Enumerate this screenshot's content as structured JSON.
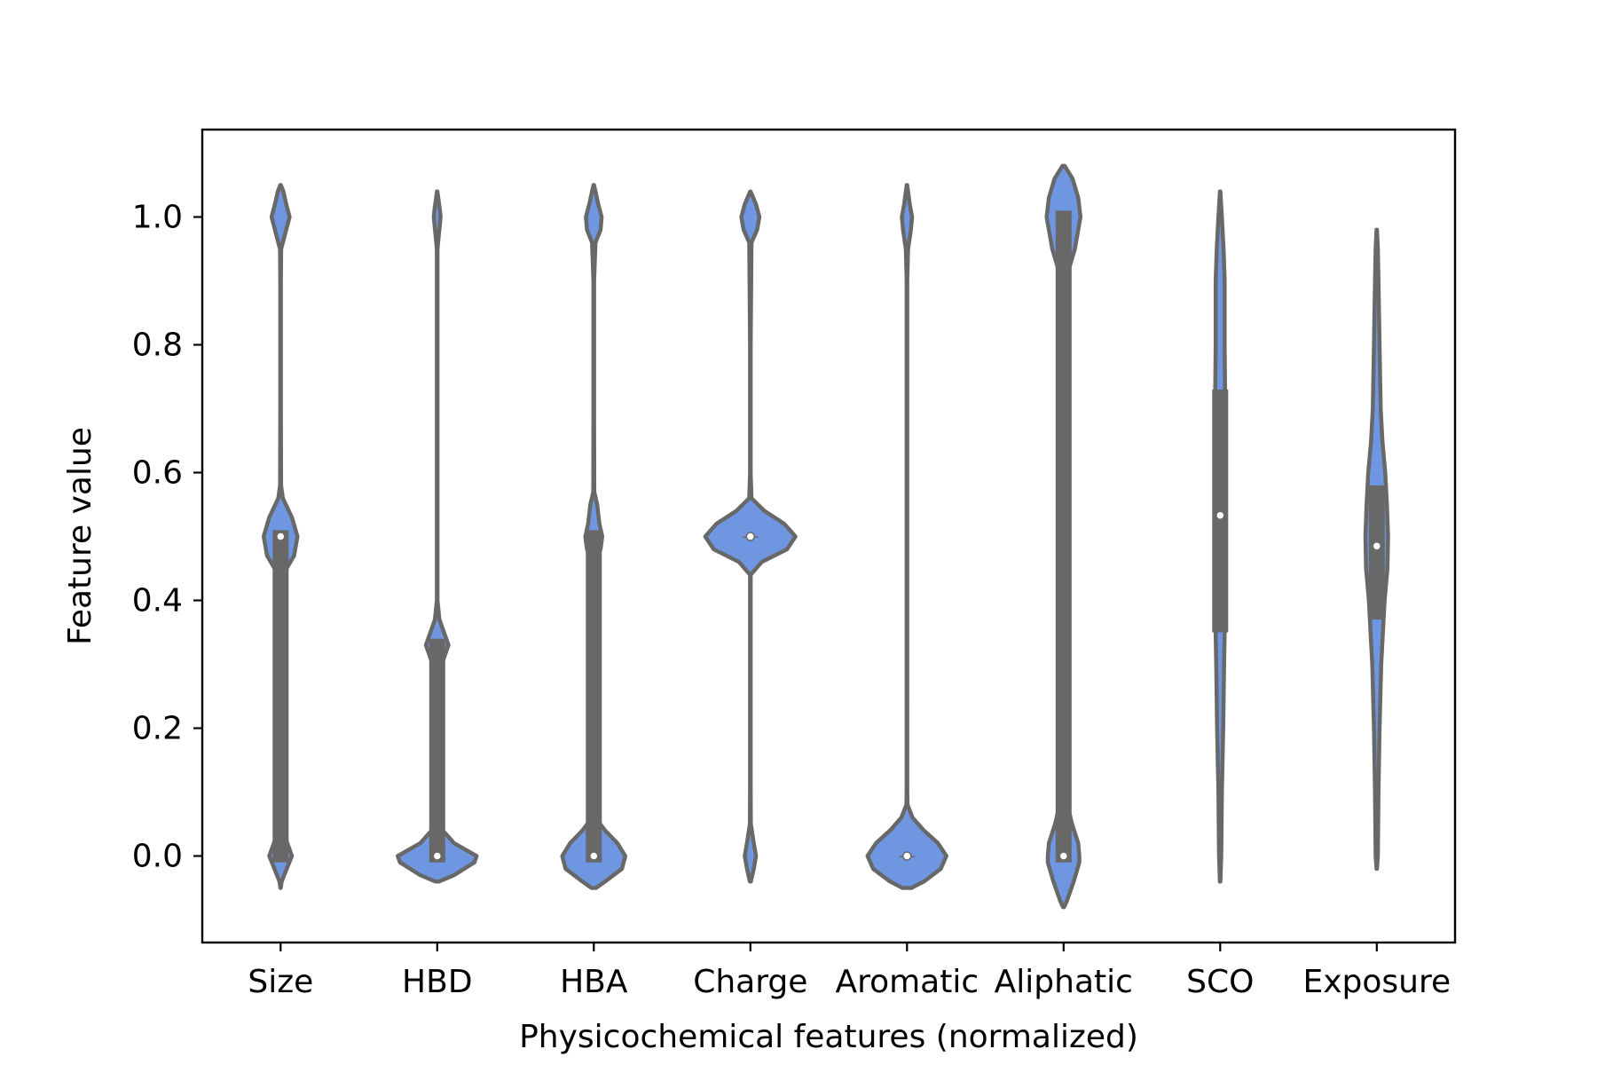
{
  "chart_data": {
    "type": "violin",
    "xlabel": "Physicochemical features (normalized)",
    "ylabel": "Feature value",
    "ylim": [
      -0.135,
      1.135
    ],
    "yticks": [
      0.0,
      0.2,
      0.4,
      0.6,
      0.8,
      1.0
    ],
    "ytick_labels": [
      "0.0",
      "0.2",
      "0.4",
      "0.6",
      "0.8",
      "1.0"
    ],
    "categories": [
      "Size",
      "HBD",
      "HBA",
      "Charge",
      "Aromatic",
      "Aliphatic",
      "SCO",
      "Exposure"
    ],
    "grid": false,
    "colors": {
      "violin_fill": "#6f97e1",
      "violin_edge": "#686868",
      "box": "#686868",
      "median_dot": "#ffffff",
      "axes": "#000000"
    },
    "violins": [
      {
        "name": "Size",
        "median": 0.5,
        "q1": -0.01,
        "q3": 0.51,
        "profile": [
          [
            -0.05,
            0.002
          ],
          [
            -0.04,
            0.02
          ],
          [
            -0.02,
            0.11
          ],
          [
            0.0,
            0.2
          ],
          [
            0.02,
            0.12
          ],
          [
            0.04,
            0.03
          ],
          [
            0.06,
            0.01
          ],
          [
            0.1,
            0.006
          ],
          [
            0.2,
            0.006
          ],
          [
            0.3,
            0.006
          ],
          [
            0.4,
            0.008
          ],
          [
            0.44,
            0.04
          ],
          [
            0.47,
            0.24
          ],
          [
            0.5,
            0.3
          ],
          [
            0.53,
            0.2
          ],
          [
            0.56,
            0.04
          ],
          [
            0.58,
            0.008
          ],
          [
            0.7,
            0.006
          ],
          [
            0.8,
            0.006
          ],
          [
            0.9,
            0.006
          ],
          [
            0.95,
            0.01
          ],
          [
            0.98,
            0.1
          ],
          [
            1.0,
            0.16
          ],
          [
            1.02,
            0.1
          ],
          [
            1.04,
            0.05
          ],
          [
            1.05,
            0.004
          ]
        ]
      },
      {
        "name": "HBD",
        "median": 0.0,
        "q1": -0.01,
        "q3": 0.34,
        "profile": [
          [
            -0.04,
            0.03
          ],
          [
            -0.03,
            0.3
          ],
          [
            -0.01,
            0.66
          ],
          [
            0.0,
            0.7
          ],
          [
            0.02,
            0.3
          ],
          [
            0.04,
            0.1
          ],
          [
            0.06,
            0.02
          ],
          [
            0.1,
            0.006
          ],
          [
            0.2,
            0.006
          ],
          [
            0.28,
            0.008
          ],
          [
            0.31,
            0.12
          ],
          [
            0.33,
            0.2
          ],
          [
            0.35,
            0.12
          ],
          [
            0.37,
            0.04
          ],
          [
            0.4,
            0.006
          ],
          [
            0.6,
            0.006
          ],
          [
            0.8,
            0.006
          ],
          [
            0.95,
            0.006
          ],
          [
            0.99,
            0.05
          ],
          [
            1.0,
            0.06
          ],
          [
            1.01,
            0.05
          ],
          [
            1.04,
            0.004
          ]
        ]
      },
      {
        "name": "HBA",
        "median": 0.0,
        "q1": -0.01,
        "q3": 0.51,
        "profile": [
          [
            -0.05,
            0.04
          ],
          [
            -0.04,
            0.2
          ],
          [
            -0.02,
            0.5
          ],
          [
            0.0,
            0.56
          ],
          [
            0.02,
            0.42
          ],
          [
            0.04,
            0.2
          ],
          [
            0.06,
            0.03
          ],
          [
            0.1,
            0.006
          ],
          [
            0.2,
            0.006
          ],
          [
            0.4,
            0.006
          ],
          [
            0.46,
            0.03
          ],
          [
            0.48,
            0.12
          ],
          [
            0.5,
            0.15
          ],
          [
            0.52,
            0.1
          ],
          [
            0.55,
            0.06
          ],
          [
            0.57,
            0.008
          ],
          [
            0.7,
            0.006
          ],
          [
            0.9,
            0.006
          ],
          [
            0.96,
            0.03
          ],
          [
            0.98,
            0.12
          ],
          [
            1.0,
            0.14
          ],
          [
            1.02,
            0.08
          ],
          [
            1.04,
            0.03
          ],
          [
            1.05,
            0.004
          ]
        ]
      },
      {
        "name": "Charge",
        "median": 0.5,
        "q1": 0.5,
        "q3": 0.5,
        "profile": [
          [
            -0.04,
            0.008
          ],
          [
            -0.02,
            0.06
          ],
          [
            0.0,
            0.1
          ],
          [
            0.02,
            0.06
          ],
          [
            0.05,
            0.008
          ],
          [
            0.1,
            0.006
          ],
          [
            0.3,
            0.006
          ],
          [
            0.44,
            0.006
          ],
          [
            0.46,
            0.2
          ],
          [
            0.48,
            0.65
          ],
          [
            0.5,
            0.8
          ],
          [
            0.52,
            0.6
          ],
          [
            0.54,
            0.25
          ],
          [
            0.56,
            0.02
          ],
          [
            0.6,
            0.006
          ],
          [
            0.8,
            0.006
          ],
          [
            0.96,
            0.02
          ],
          [
            0.98,
            0.12
          ],
          [
            1.0,
            0.16
          ],
          [
            1.02,
            0.1
          ],
          [
            1.04,
            0.004
          ]
        ]
      },
      {
        "name": "Aromatic",
        "median": 0.0,
        "q1": 0.0,
        "q3": 0.0,
        "profile": [
          [
            -0.05,
            0.08
          ],
          [
            -0.04,
            0.3
          ],
          [
            -0.02,
            0.6
          ],
          [
            0.0,
            0.7
          ],
          [
            0.02,
            0.55
          ],
          [
            0.04,
            0.3
          ],
          [
            0.06,
            0.1
          ],
          [
            0.08,
            0.01
          ],
          [
            0.1,
            0.006
          ],
          [
            0.3,
            0.006
          ],
          [
            0.6,
            0.006
          ],
          [
            0.9,
            0.006
          ],
          [
            0.95,
            0.02
          ],
          [
            0.98,
            0.07
          ],
          [
            1.0,
            0.09
          ],
          [
            1.02,
            0.05
          ],
          [
            1.05,
            0.004
          ]
        ]
      },
      {
        "name": "Aliphatic",
        "median": 0.0,
        "q1": -0.01,
        "q3": 1.01,
        "profile": [
          [
            -0.08,
            0.01
          ],
          [
            -0.07,
            0.06
          ],
          [
            -0.04,
            0.18
          ],
          [
            -0.01,
            0.28
          ],
          [
            0.0,
            0.28
          ],
          [
            0.02,
            0.26
          ],
          [
            0.05,
            0.15
          ],
          [
            0.08,
            0.07
          ],
          [
            0.1,
            0.04
          ],
          [
            0.3,
            0.04
          ],
          [
            0.6,
            0.04
          ],
          [
            0.88,
            0.04
          ],
          [
            0.92,
            0.1
          ],
          [
            0.95,
            0.2
          ],
          [
            1.0,
            0.3
          ],
          [
            1.03,
            0.26
          ],
          [
            1.06,
            0.16
          ],
          [
            1.08,
            0.02
          ]
        ]
      },
      {
        "name": "SCO",
        "median": 0.533,
        "q1": 0.35,
        "q3": 0.73,
        "profile": [
          [
            -0.04,
            0.004
          ],
          [
            0.0,
            0.02
          ],
          [
            0.1,
            0.03
          ],
          [
            0.2,
            0.055
          ],
          [
            0.3,
            0.07
          ],
          [
            0.4,
            0.09
          ],
          [
            0.5,
            0.1
          ],
          [
            0.6,
            0.1
          ],
          [
            0.7,
            0.09
          ],
          [
            0.8,
            0.08
          ],
          [
            0.9,
            0.08
          ],
          [
            0.95,
            0.06
          ],
          [
            1.0,
            0.03
          ],
          [
            1.04,
            0.004
          ]
        ]
      },
      {
        "name": "Exposure",
        "median": 0.485,
        "q1": 0.37,
        "q3": 0.58,
        "profile": [
          [
            -0.02,
            0.004
          ],
          [
            0.0,
            0.02
          ],
          [
            0.1,
            0.03
          ],
          [
            0.2,
            0.05
          ],
          [
            0.3,
            0.08
          ],
          [
            0.4,
            0.14
          ],
          [
            0.45,
            0.19
          ],
          [
            0.5,
            0.2
          ],
          [
            0.55,
            0.18
          ],
          [
            0.6,
            0.15
          ],
          [
            0.65,
            0.1
          ],
          [
            0.7,
            0.07
          ],
          [
            0.8,
            0.05
          ],
          [
            0.9,
            0.03
          ],
          [
            0.95,
            0.02
          ],
          [
            0.98,
            0.004
          ]
        ]
      }
    ]
  }
}
